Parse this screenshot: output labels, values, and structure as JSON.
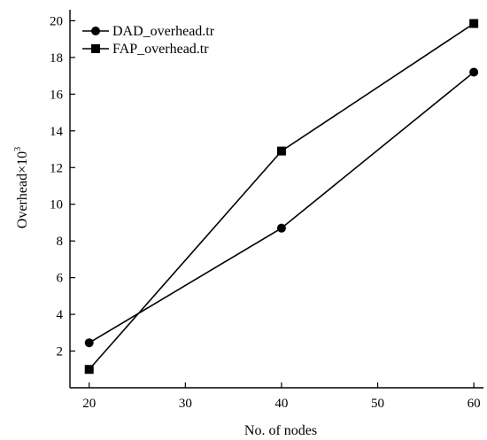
{
  "chart_data": {
    "type": "line",
    "title": "",
    "xlabel": "No. of nodes",
    "ylabel_main": "Overhead×10",
    "ylabel_sup": "3",
    "x": [
      20,
      40,
      60
    ],
    "xlim": [
      18,
      61
    ],
    "ylim": [
      0,
      20.6
    ],
    "xticks": [
      20,
      30,
      40,
      50,
      60
    ],
    "yticks": [
      2,
      4,
      6,
      8,
      10,
      12,
      14,
      16,
      18,
      20
    ],
    "grid": false,
    "legend_position": "top-left",
    "series": [
      {
        "name": "DAD_overhead.tr",
        "marker": "circle",
        "values": [
          2.45,
          8.7,
          17.2
        ]
      },
      {
        "name": "FAP_overhead.tr",
        "marker": "square",
        "values": [
          1.0,
          12.9,
          19.85
        ]
      }
    ],
    "colors": {
      "line": "#000000",
      "background": "#ffffff"
    }
  }
}
